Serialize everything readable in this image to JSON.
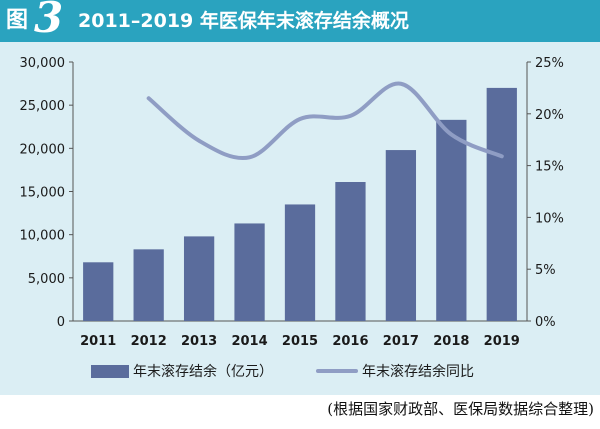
{
  "figure": {
    "prefix": "图",
    "number": "3",
    "title": "2011–2019 年医保年末滚存结余概况"
  },
  "source_note": "(根据国家财政部、医保局数据综合整理)",
  "colors": {
    "bar": "#5a6c9c",
    "line": "#8f9dc4",
    "title_bg": "#2aa3bf",
    "panel_bg": "#dbeef4"
  },
  "chart_data": {
    "type": "bar",
    "categories": [
      "2011",
      "2012",
      "2013",
      "2014",
      "2015",
      "2016",
      "2017",
      "2018",
      "2019"
    ],
    "series": [
      {
        "name": "年末滚存结余（亿元）",
        "type": "bar",
        "axis": "left",
        "values": [
          6800,
          8300,
          9800,
          11300,
          13500,
          16100,
          19800,
          23300,
          27000
        ]
      },
      {
        "name": "年末滚存结余同比",
        "type": "line",
        "axis": "right",
        "values": [
          null,
          21.5,
          17.4,
          15.8,
          19.5,
          19.8,
          22.9,
          18.0,
          15.9
        ]
      }
    ],
    "y_left": {
      "min": 0,
      "max": 30000,
      "ticks": [
        0,
        5000,
        10000,
        15000,
        20000,
        25000,
        30000
      ],
      "tick_labels": [
        "0",
        "5,000",
        "10,000",
        "15,000",
        "20,000",
        "25,000",
        "30,000"
      ]
    },
    "y_right": {
      "min": 0,
      "max": 25,
      "ticks": [
        0,
        5,
        10,
        15,
        20,
        25
      ],
      "tick_labels": [
        "0%",
        "5%",
        "10%",
        "15%",
        "20%",
        "25%"
      ]
    },
    "legend_placement": "bottom-center",
    "grid": false
  }
}
